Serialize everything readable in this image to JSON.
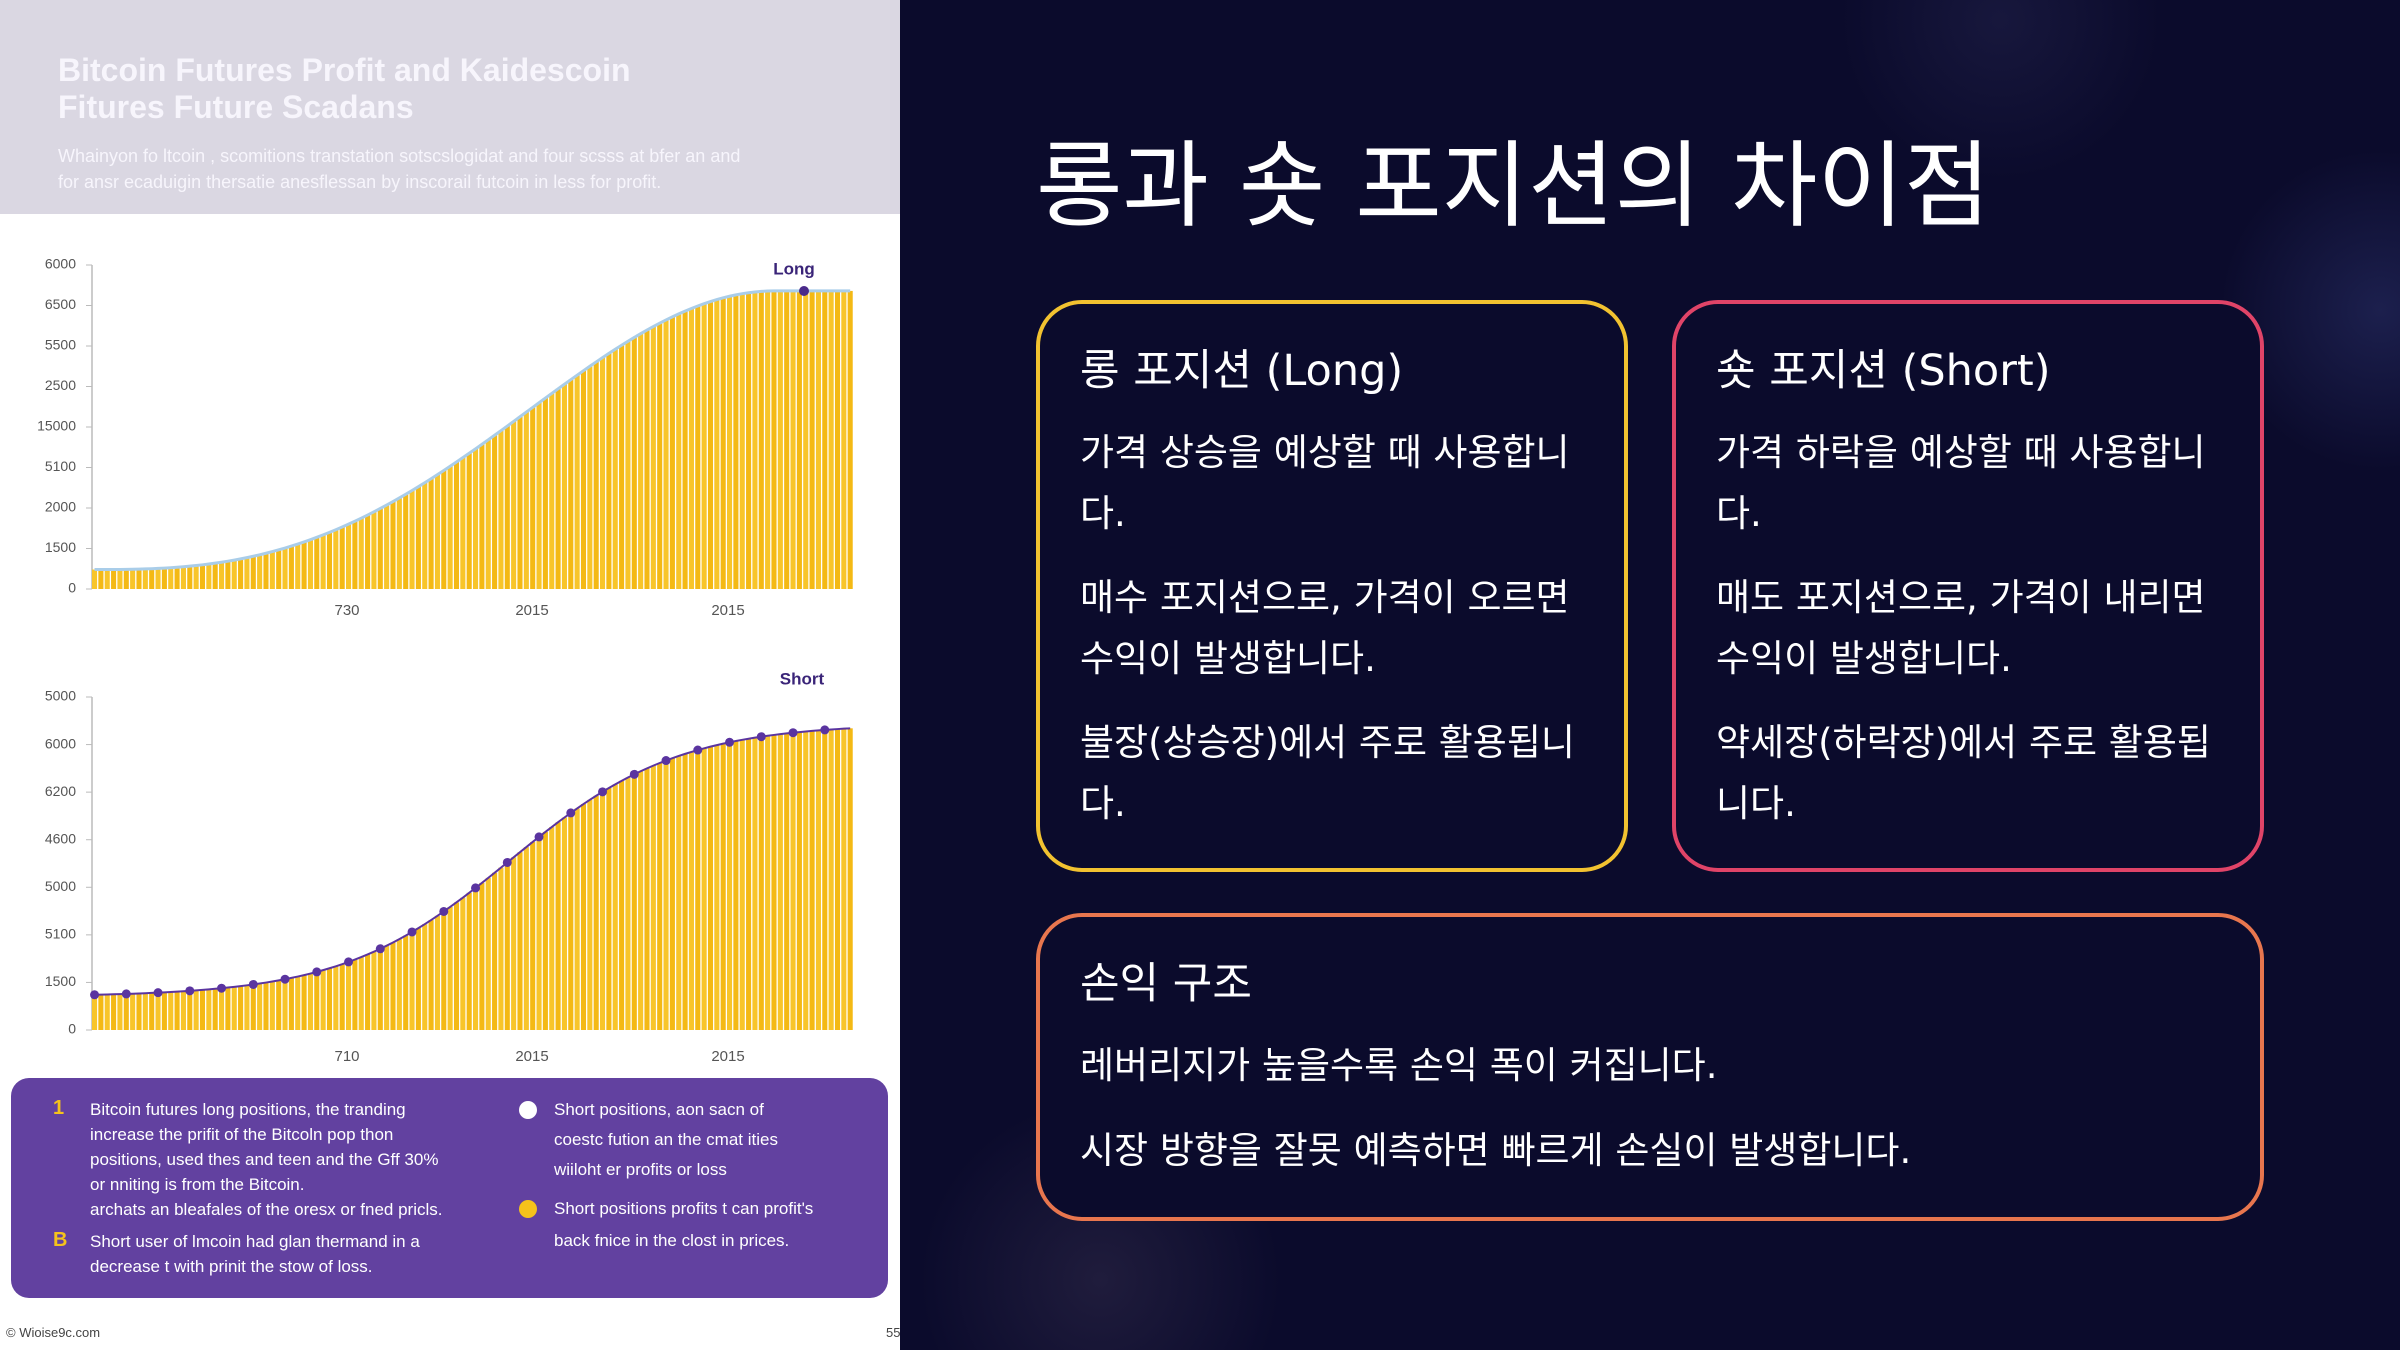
{
  "left": {
    "header": {
      "title": [
        "Bitcoin Futures Profit and Kaidescoin",
        "Fitures Future Scadans"
      ],
      "subtitle": [
        "Whainyon fo ltcoin , scomitions transtation sotscslogidat and four scsss at bfer an and",
        "for ansr ecaduigin thersatie anesflessan by inscorail futcoin in less for profit."
      ]
    },
    "charts": [
      {
        "label": "Long",
        "yticks": [
          "6000",
          "6500",
          "5500",
          "2500",
          "15000",
          "5100",
          "2000",
          "1500",
          "0"
        ],
        "xticks": [
          "730",
          "2015",
          "2015"
        ]
      },
      {
        "label": "Short",
        "yticks": [
          "5000",
          "6000",
          "6200",
          "4600",
          "5000",
          "5100",
          "1500",
          "0"
        ],
        "xticks": [
          "710",
          "2015",
          "2015"
        ]
      }
    ],
    "notes": [
      [
        {
          "icon": "1",
          "lines": [
            "Bitcoin futures long positions, the tranding",
            "increase the prifit of the Bitcoln pop thon",
            "positions, used thes and teen and the Gff 30%",
            "or nniting is from the Bitcoin.",
            "archats an bleafales of the oresx or fned pricls."
          ]
        },
        {
          "icon": "B",
          "lines": [
            "Short user of lmcoin had glan thermand in a",
            "decrease t with prinit the stow of loss."
          ]
        }
      ],
      [
        {
          "lines": [
            "Short positions, aon sacn of",
            "coestc fution an the cmat ities",
            "wiiloht er profits or loss"
          ]
        },
        {
          "lines": [
            "Short positions profits t can profit's",
            "back fnice in the clost in prices."
          ]
        }
      ]
    ],
    "footer": {
      "source": "© Wioise9c.com",
      "page": "55"
    }
  },
  "right": {
    "title": "롱과 숏 포지션의 차이점",
    "cards": [
      {
        "heading": "롱 포지션 (Long)",
        "paragraphs": [
          "가격 상승을 예상할 때 사용합니다.",
          "매수 포지션으로, 가격이 오르면 수익이 발생합니다.",
          "불장(상승장)에서 주로 활용됩니다."
        ]
      },
      {
        "heading": "숏 포지션 (Short)",
        "paragraphs": [
          "가격 하락을 예상할 때 사용합니다.",
          "매도 포지션으로, 가격이 내리면 수익이 발생합니다.",
          "약세장(하락장)에서 주로 활용됩니다."
        ]
      },
      {
        "heading": "손익 구조",
        "paragraphs": [
          "레버리지가 높을수록 손익 폭이 커집니다.",
          "시장 방향을 잘못 예측하면 빠르게 손실이 발생합니다."
        ]
      }
    ]
  }
}
